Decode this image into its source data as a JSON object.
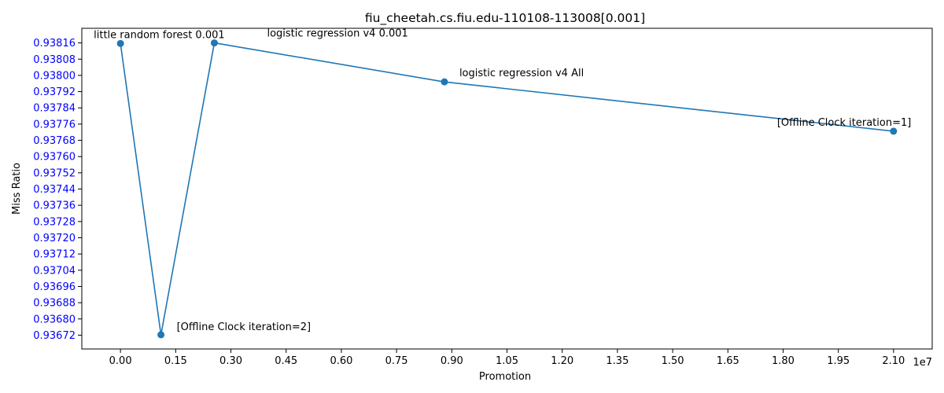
{
  "chart_data": {
    "type": "line",
    "title": "fiu_cheetah.cs.fiu.edu-110108-113008[0.001]",
    "xlabel": "Promotion",
    "ylabel": "Miss Ratio",
    "x_offset_label": "1e7",
    "x_scale": 10000000,
    "xlim": [
      -1050000,
      22050000
    ],
    "ylim": [
      0.936652,
      0.938232
    ],
    "x_ticks": [
      0,
      1500000,
      3000000,
      4500000,
      6000000,
      7500000,
      9000000,
      10500000,
      12000000,
      13500000,
      15000000,
      16500000,
      18000000,
      19500000,
      21000000
    ],
    "x_tick_labels": [
      "0.00",
      "0.15",
      "0.30",
      "0.45",
      "0.60",
      "0.75",
      "0.90",
      "1.05",
      "1.20",
      "1.35",
      "1.50",
      "1.65",
      "1.80",
      "1.95",
      "2.10"
    ],
    "y_ticks": [
      0.93672,
      0.9368,
      0.93688,
      0.93696,
      0.93704,
      0.93712,
      0.9372,
      0.93728,
      0.93736,
      0.93744,
      0.93752,
      0.9376,
      0.93768,
      0.93776,
      0.93784,
      0.93792,
      0.938,
      0.93808,
      0.93816
    ],
    "y_tick_labels": [
      "0.93672",
      "0.93680",
      "0.93688",
      "0.93696",
      "0.93704",
      "0.93712",
      "0.93720",
      "0.93728",
      "0.93736",
      "0.93744",
      "0.93752",
      "0.93760",
      "0.93768",
      "0.93776",
      "0.93784",
      "0.93792",
      "0.93800",
      "0.93808",
      "0.93816"
    ],
    "grid": false,
    "series": [
      {
        "color": "#1f77b4",
        "points": [
          {
            "x": 0,
            "y": 0.938157,
            "label": "little random forest 0.001"
          },
          {
            "x": 1100000,
            "y": 0.936722,
            "label": "[Offline Clock iteration=2]"
          },
          {
            "x": 2550000,
            "y": 0.93816,
            "label": "logistic regression v4 0.001"
          },
          {
            "x": 8800000,
            "y": 0.937968,
            "label": "logistic regression v4 All"
          },
          {
            "x": 21000000,
            "y": 0.937725,
            "label": "[Offline Clock iteration=1]"
          }
        ]
      }
    ],
    "y_tick_color": "#0000ff"
  }
}
